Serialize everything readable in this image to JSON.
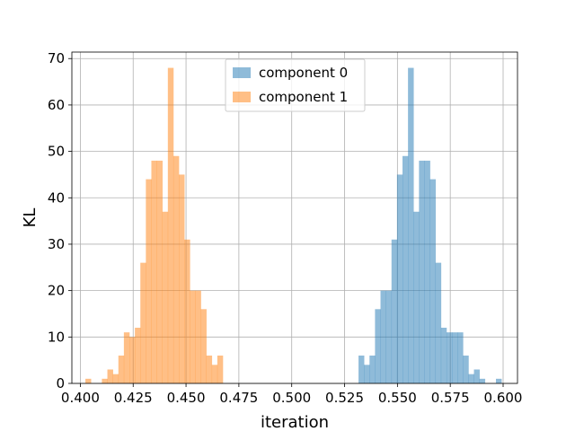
{
  "chart_data": {
    "type": "histogram",
    "title": "",
    "xlabel": "iteration",
    "ylabel": "KL",
    "xlim": [
      0.396,
      0.6068
    ],
    "ylim": [
      0,
      71.4
    ],
    "bin_width": 0.0026,
    "x_ticks": [
      0.4,
      0.425,
      0.45,
      0.475,
      0.5,
      0.525,
      0.55,
      0.575,
      0.6
    ],
    "x_tick_labels": [
      "0.400",
      "0.425",
      "0.450",
      "0.475",
      "0.500",
      "0.525",
      "0.550",
      "0.575",
      "0.600"
    ],
    "y_ticks": [
      0,
      10,
      20,
      30,
      40,
      50,
      60,
      70
    ],
    "y_tick_labels": [
      "0",
      "10",
      "20",
      "30",
      "40",
      "50",
      "60",
      "70"
    ],
    "grid": true,
    "legend_position": "top-center",
    "series": [
      {
        "name": "component 0",
        "color": "#1f77b4",
        "opacity": 0.5,
        "bins": [
          {
            "x0": 0.5316,
            "count": 6
          },
          {
            "x0": 0.5342,
            "count": 4
          },
          {
            "x0": 0.5368,
            "count": 6
          },
          {
            "x0": 0.5394,
            "count": 16
          },
          {
            "x0": 0.542,
            "count": 20
          },
          {
            "x0": 0.5446,
            "count": 20
          },
          {
            "x0": 0.5472,
            "count": 31
          },
          {
            "x0": 0.5498,
            "count": 45
          },
          {
            "x0": 0.5524,
            "count": 49
          },
          {
            "x0": 0.555,
            "count": 68
          },
          {
            "x0": 0.5576,
            "count": 37
          },
          {
            "x0": 0.5602,
            "count": 48
          },
          {
            "x0": 0.5628,
            "count": 48
          },
          {
            "x0": 0.5654,
            "count": 44
          },
          {
            "x0": 0.568,
            "count": 26
          },
          {
            "x0": 0.5706,
            "count": 12
          },
          {
            "x0": 0.5732,
            "count": 11
          },
          {
            "x0": 0.5758,
            "count": 11
          },
          {
            "x0": 0.5784,
            "count": 11
          },
          {
            "x0": 0.581,
            "count": 6
          },
          {
            "x0": 0.5836,
            "count": 2
          },
          {
            "x0": 0.5862,
            "count": 3
          },
          {
            "x0": 0.5888,
            "count": 1
          },
          {
            "x0": 0.5914,
            "count": 0
          },
          {
            "x0": 0.594,
            "count": 0
          },
          {
            "x0": 0.5966,
            "count": 1
          }
        ]
      },
      {
        "name": "component 1",
        "color": "#ff7f0e",
        "opacity": 0.5,
        "bins": [
          {
            "x0": 0.4024,
            "count": 1
          },
          {
            "x0": 0.405,
            "count": 0
          },
          {
            "x0": 0.4076,
            "count": 0
          },
          {
            "x0": 0.4102,
            "count": 1
          },
          {
            "x0": 0.4128,
            "count": 3
          },
          {
            "x0": 0.4154,
            "count": 2
          },
          {
            "x0": 0.418,
            "count": 6
          },
          {
            "x0": 0.4206,
            "count": 11
          },
          {
            "x0": 0.4232,
            "count": 10
          },
          {
            "x0": 0.4258,
            "count": 12
          },
          {
            "x0": 0.4284,
            "count": 26
          },
          {
            "x0": 0.431,
            "count": 44
          },
          {
            "x0": 0.4336,
            "count": 48
          },
          {
            "x0": 0.4362,
            "count": 48
          },
          {
            "x0": 0.4388,
            "count": 37
          },
          {
            "x0": 0.4414,
            "count": 68
          },
          {
            "x0": 0.444,
            "count": 49
          },
          {
            "x0": 0.4466,
            "count": 45
          },
          {
            "x0": 0.4492,
            "count": 31
          },
          {
            "x0": 0.4518,
            "count": 20
          },
          {
            "x0": 0.4544,
            "count": 20
          },
          {
            "x0": 0.457,
            "count": 16
          },
          {
            "x0": 0.4596,
            "count": 6
          },
          {
            "x0": 0.4622,
            "count": 4
          },
          {
            "x0": 0.4648,
            "count": 6
          }
        ]
      }
    ]
  }
}
